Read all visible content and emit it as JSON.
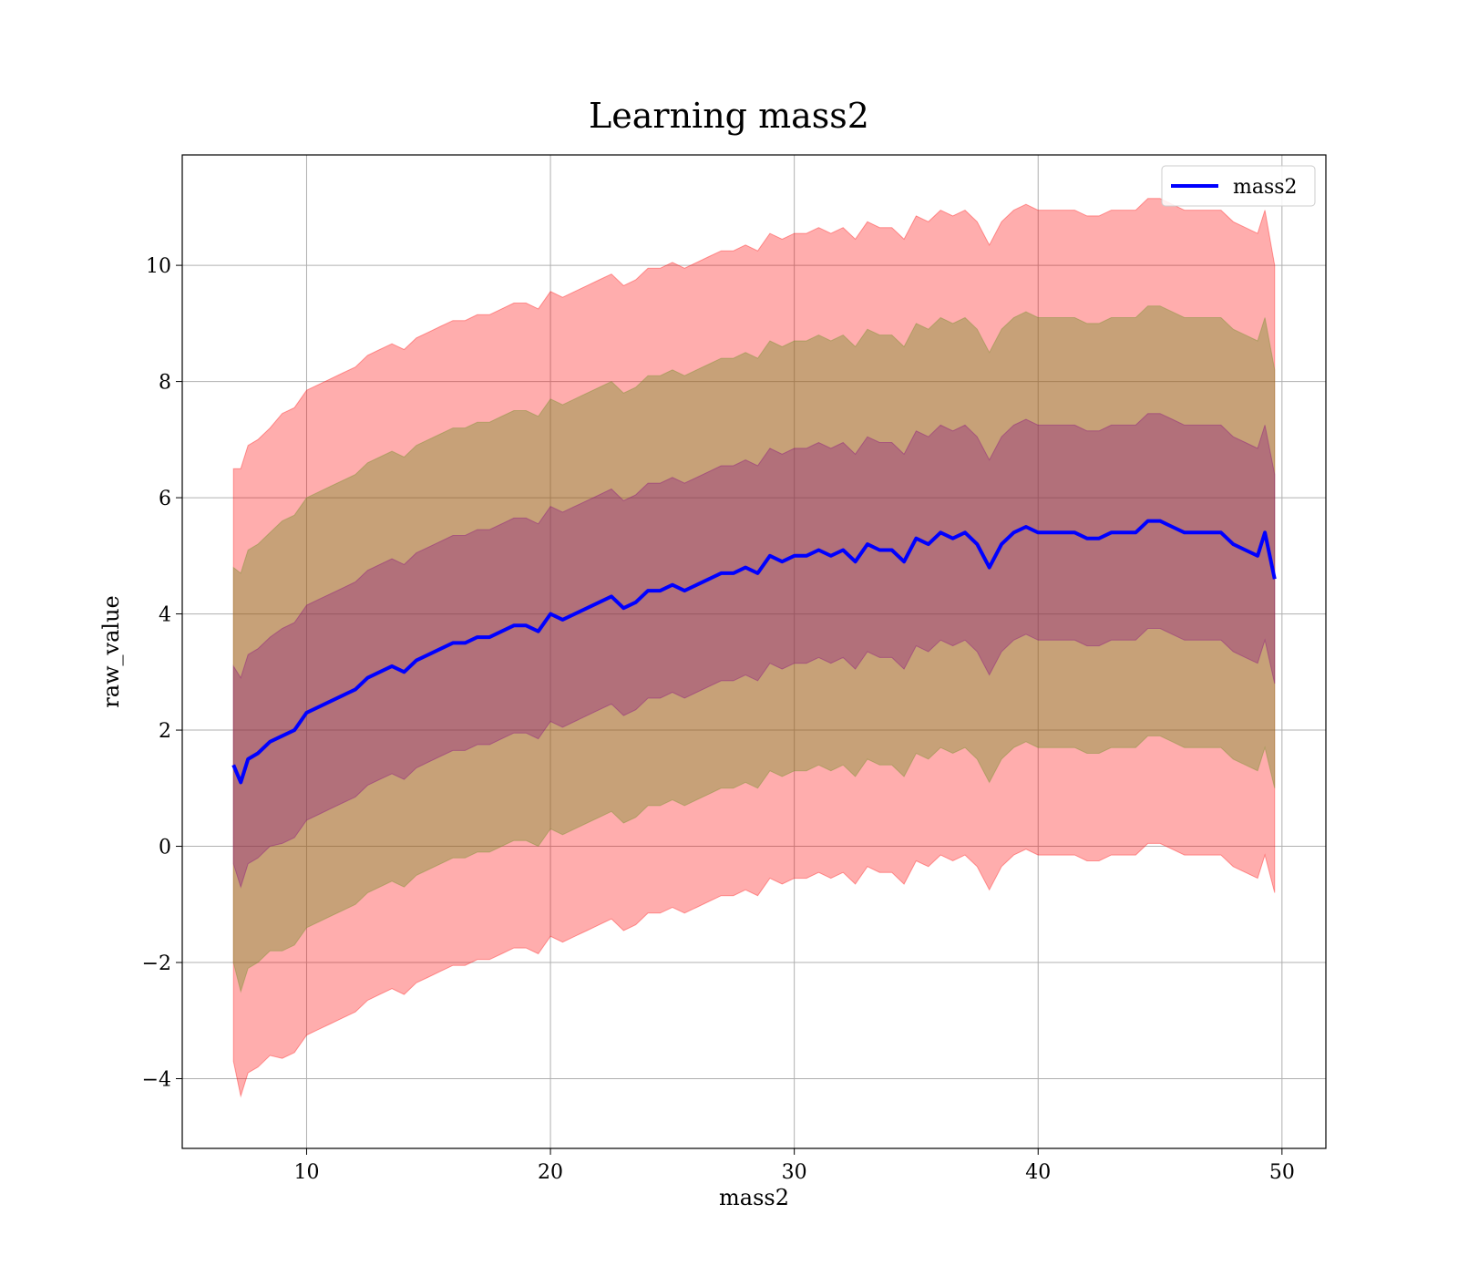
{
  "chart_data": {
    "type": "line",
    "title": "Learning mass2",
    "xlabel": "mass2",
    "ylabel": "raw_value",
    "xlim": [
      4.9,
      51.8
    ],
    "ylim": [
      -5.2,
      11.9
    ],
    "xticks": [
      10,
      20,
      30,
      40,
      50
    ],
    "yticks": [
      -4,
      -2,
      0,
      2,
      4,
      6,
      8,
      10
    ],
    "grid": true,
    "legend_position": "top-right",
    "series": [
      {
        "name": "mass2",
        "color": "#0000ff",
        "x": [
          7.0,
          7.3,
          7.6,
          8.0,
          8.5,
          9.0,
          9.5,
          10.0,
          10.5,
          11.0,
          11.5,
          12.0,
          12.5,
          13.0,
          13.5,
          14.0,
          14.5,
          15.0,
          15.5,
          16.0,
          16.5,
          17.0,
          17.5,
          18.0,
          18.5,
          19.0,
          19.5,
          20.0,
          20.5,
          21.0,
          21.5,
          22.0,
          22.5,
          23.0,
          23.5,
          24.0,
          24.5,
          25.0,
          25.5,
          26.0,
          26.5,
          27.0,
          27.5,
          28.0,
          28.5,
          29.0,
          29.5,
          30.0,
          30.5,
          31.0,
          31.5,
          32.0,
          32.5,
          33.0,
          33.5,
          34.0,
          34.5,
          35.0,
          35.5,
          36.0,
          36.5,
          37.0,
          37.5,
          38.0,
          38.5,
          39.0,
          39.5,
          40.0,
          40.5,
          41.0,
          41.5,
          42.0,
          42.5,
          43.0,
          43.5,
          44.0,
          44.5,
          45.0,
          45.5,
          46.0,
          46.5,
          47.0,
          47.5,
          48.0,
          48.5,
          49.0,
          49.3,
          49.7
        ],
        "values": [
          1.4,
          1.1,
          1.5,
          1.6,
          1.8,
          1.9,
          2.0,
          2.3,
          2.4,
          2.5,
          2.6,
          2.7,
          2.9,
          3.0,
          3.1,
          3.0,
          3.2,
          3.3,
          3.4,
          3.5,
          3.5,
          3.6,
          3.6,
          3.7,
          3.8,
          3.8,
          3.7,
          4.0,
          3.9,
          4.0,
          4.1,
          4.2,
          4.3,
          4.1,
          4.2,
          4.4,
          4.4,
          4.5,
          4.4,
          4.5,
          4.6,
          4.7,
          4.7,
          4.8,
          4.7,
          5.0,
          4.9,
          5.0,
          5.0,
          5.1,
          5.0,
          5.1,
          4.9,
          5.2,
          5.1,
          5.1,
          4.9,
          5.3,
          5.2,
          5.4,
          5.3,
          5.4,
          5.2,
          4.8,
          5.2,
          5.4,
          5.5,
          5.4,
          5.4,
          5.4,
          5.4,
          5.3,
          5.3,
          5.4,
          5.4,
          5.4,
          5.6,
          5.6,
          5.5,
          5.4,
          5.4,
          5.4,
          5.4,
          5.2,
          5.1,
          5.0,
          5.4,
          4.6
        ],
        "std": [
          1.7,
          1.8,
          1.8,
          1.8,
          1.8,
          1.85,
          1.85,
          1.85,
          1.85,
          1.85,
          1.85,
          1.85,
          1.85,
          1.85,
          1.85,
          1.85,
          1.85,
          1.85,
          1.85,
          1.85,
          1.85,
          1.85,
          1.85,
          1.85,
          1.85,
          1.85,
          1.85,
          1.85,
          1.85,
          1.85,
          1.85,
          1.85,
          1.85,
          1.85,
          1.85,
          1.85,
          1.85,
          1.85,
          1.85,
          1.85,
          1.85,
          1.85,
          1.85,
          1.85,
          1.85,
          1.85,
          1.85,
          1.85,
          1.85,
          1.85,
          1.85,
          1.85,
          1.85,
          1.85,
          1.85,
          1.85,
          1.85,
          1.85,
          1.85,
          1.85,
          1.85,
          1.85,
          1.85,
          1.85,
          1.85,
          1.85,
          1.85,
          1.85,
          1.85,
          1.85,
          1.85,
          1.85,
          1.85,
          1.85,
          1.85,
          1.85,
          1.85,
          1.85,
          1.85,
          1.85,
          1.85,
          1.85,
          1.85,
          1.85,
          1.85,
          1.85,
          1.85,
          1.8
        ]
      }
    ],
    "bands": [
      {
        "sigma": 3,
        "fill": "#ff0000",
        "opacity": 0.32
      },
      {
        "sigma": 2,
        "fill": "#6b8e23",
        "opacity": 0.38
      },
      {
        "sigma": 1,
        "fill": "#800080",
        "opacity": 0.3
      }
    ]
  }
}
